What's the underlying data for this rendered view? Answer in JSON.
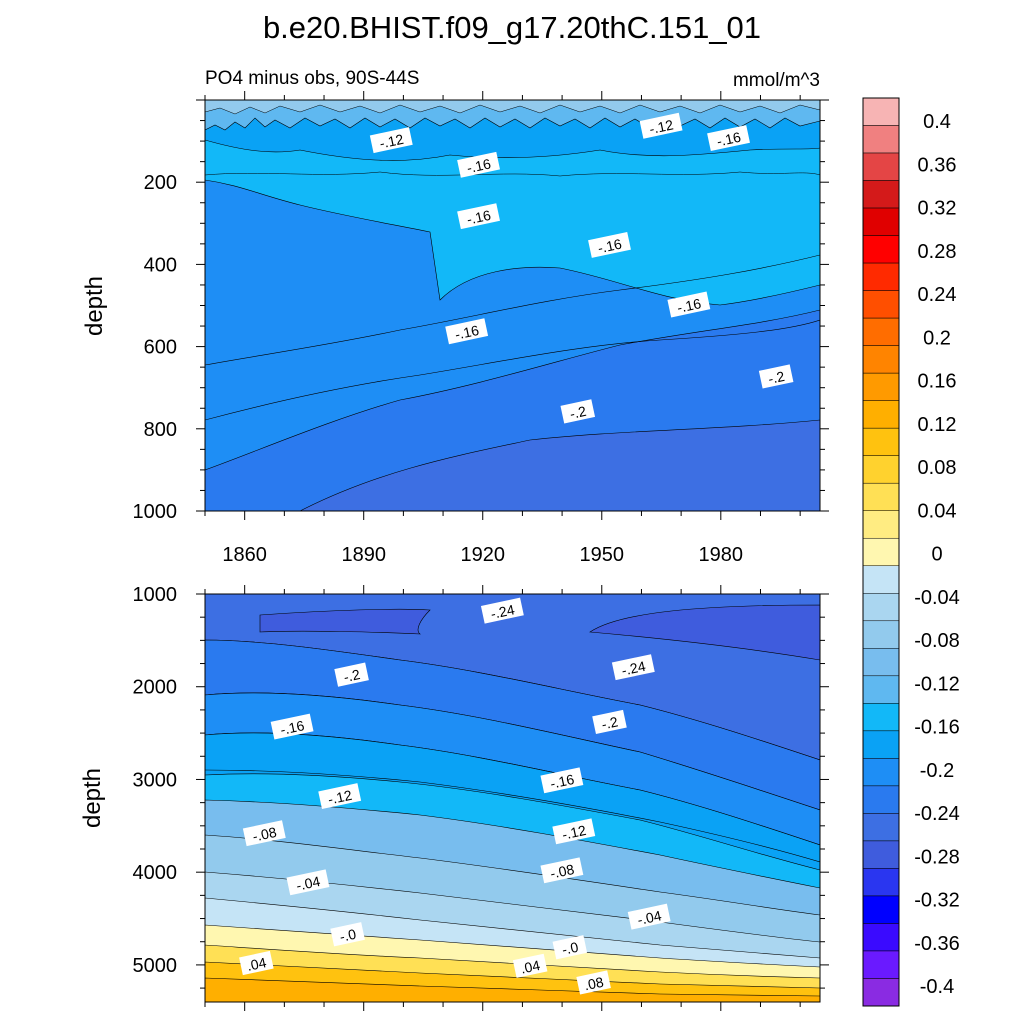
{
  "title": "b.e20.BHIST.f09_g17.20thC.151_01",
  "chart_data": [
    {
      "type": "contour",
      "name": "upper",
      "subtitle_left": "PO4 minus obs, 90S-44S",
      "subtitle_right": "mmol/m^3",
      "xlabel": "",
      "ylabel": "depth",
      "xlim": [
        1850,
        2005
      ],
      "ylim": [
        0,
        1000
      ],
      "y_inverted": true,
      "x_ticks": [
        "1860",
        "1890",
        "1920",
        "1950",
        "1980"
      ],
      "y_ticks": [
        "200",
        "400",
        "600",
        "800",
        "1000"
      ],
      "contour_labels": [
        {
          "text": "-.12",
          "x": 1897,
          "y": 100
        },
        {
          "text": "-.12",
          "x": 1965,
          "y": 65
        },
        {
          "text": "-.16",
          "x": 1982,
          "y": 95
        },
        {
          "text": "-.16",
          "x": 1919,
          "y": 160
        },
        {
          "text": "-.16",
          "x": 1919,
          "y": 285
        },
        {
          "text": "-.16",
          "x": 1952,
          "y": 355
        },
        {
          "text": "-.16",
          "x": 1972,
          "y": 500
        },
        {
          "text": "-.16",
          "x": 1916,
          "y": 565
        },
        {
          "text": "-.2",
          "x": 1994,
          "y": 675
        },
        {
          "text": "-.2",
          "x": 1944,
          "y": 760
        }
      ]
    },
    {
      "type": "contour",
      "name": "lower",
      "xlabel": "",
      "ylabel": "depth",
      "xlim": [
        1850,
        2005
      ],
      "ylim": [
        1000,
        5400
      ],
      "y_inverted": true,
      "y_ticks": [
        "1000",
        "2000",
        "3000",
        "4000",
        "5000"
      ],
      "contour_labels": [
        {
          "text": "-.24",
          "x": 1925,
          "y": 1190
        },
        {
          "text": "-.24",
          "x": 1958,
          "y": 1800
        },
        {
          "text": "-.2",
          "x": 1887,
          "y": 1880
        },
        {
          "text": "-.2",
          "x": 1952,
          "y": 2390
        },
        {
          "text": "-.16",
          "x": 1872,
          "y": 2440
        },
        {
          "text": "-.16",
          "x": 1940,
          "y": 3020
        },
        {
          "text": "-.12",
          "x": 1884,
          "y": 3190
        },
        {
          "text": "-.12",
          "x": 1943,
          "y": 3570
        },
        {
          "text": "-.08",
          "x": 1865,
          "y": 3590
        },
        {
          "text": "-.08",
          "x": 1940,
          "y": 3990
        },
        {
          "text": "-.04",
          "x": 1876,
          "y": 4120
        },
        {
          "text": "-.04",
          "x": 1962,
          "y": 4490
        },
        {
          "text": "-.0",
          "x": 1886,
          "y": 4680
        },
        {
          "text": "-.0",
          "x": 1942,
          "y": 4820
        },
        {
          "text": ".04",
          "x": 1863,
          "y": 4990
        },
        {
          "text": ".04",
          "x": 1932,
          "y": 5020
        },
        {
          "text": ".08",
          "x": 1948,
          "y": 5200
        }
      ]
    }
  ],
  "colorbar": {
    "labels": [
      "0.4",
      "0.36",
      "0.32",
      "0.28",
      "0.24",
      "0.2",
      "0.16",
      "0.12",
      "0.08",
      "0.04",
      "0",
      "-0.04",
      "-0.08",
      "-0.12",
      "-0.16",
      "-0.2",
      "-0.24",
      "-0.28",
      "-0.32",
      "-0.36",
      "-0.4"
    ],
    "colors": [
      "#f7b4b4",
      "#f08080",
      "#e44545",
      "#d41a1a",
      "#e00000",
      "#ff0000",
      "#ff2a00",
      "#ff4f00",
      "#ff6d00",
      "#ff8400",
      "#ff9a00",
      "#ffaf00",
      "#ffc20f",
      "#ffd22e",
      "#ffe055",
      "#ffec82",
      "#fff7b0",
      "#c5e4f6",
      "#aad6f0",
      "#92caed",
      "#78bdee",
      "#5fb8f0",
      "#12b8f8",
      "#0aa2f5",
      "#1e8ef5",
      "#2a7aef",
      "#3d6fe3",
      "#3f5cdd",
      "#2a36f0",
      "#0000ff",
      "#3a0aff",
      "#6a1aff",
      "#8a2be2"
    ]
  }
}
